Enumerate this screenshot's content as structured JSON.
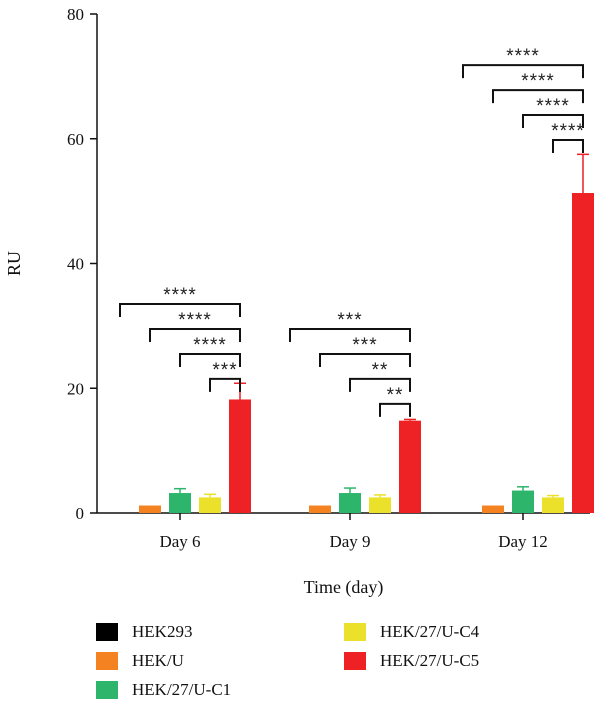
{
  "chart_data": {
    "type": "bar",
    "title": "",
    "xlabel": "Time (day)",
    "ylabel": "RU",
    "ylim": [
      0,
      80
    ],
    "yticks": [
      0,
      20,
      40,
      60,
      80
    ],
    "categories": [
      "Day 6",
      "Day 9",
      "Day 12"
    ],
    "series": [
      {
        "name": "HEK293",
        "color": "#000000",
        "values": [
          0,
          0,
          0
        ],
        "errors": [
          0,
          0,
          0
        ]
      },
      {
        "name": "HEK/U",
        "color": "#f58220",
        "values": [
          1.2,
          1.2,
          1.2
        ],
        "errors": [
          0,
          0,
          0
        ]
      },
      {
        "name": "HEK/27/U-C1",
        "color": "#2db56b",
        "values": [
          3.2,
          3.2,
          3.6
        ],
        "errors": [
          0.7,
          0.8,
          0.6
        ]
      },
      {
        "name": "HEK/27/U-C4",
        "color": "#ece12a",
        "values": [
          2.5,
          2.5,
          2.5
        ],
        "errors": [
          0.5,
          0.4,
          0.3
        ]
      },
      {
        "name": "HEK/27/U-C5",
        "color": "#ee2124",
        "values": [
          18.2,
          14.8,
          51.3
        ],
        "errors": [
          2.6,
          0.2,
          6.2
        ]
      }
    ],
    "significance": [
      {
        "group": 0,
        "from": 0,
        "to": 4,
        "label": "****"
      },
      {
        "group": 0,
        "from": 1,
        "to": 4,
        "label": "****"
      },
      {
        "group": 0,
        "from": 2,
        "to": 4,
        "label": "****"
      },
      {
        "group": 0,
        "from": 3,
        "to": 4,
        "label": "***"
      },
      {
        "group": 1,
        "from": 0,
        "to": 4,
        "label": "***"
      },
      {
        "group": 1,
        "from": 1,
        "to": 4,
        "label": "***"
      },
      {
        "group": 1,
        "from": 2,
        "to": 4,
        "label": "**"
      },
      {
        "group": 1,
        "from": 3,
        "to": 4,
        "label": "**"
      },
      {
        "group": 2,
        "from": 0,
        "to": 4,
        "label": "****"
      },
      {
        "group": 2,
        "from": 1,
        "to": 4,
        "label": "****"
      },
      {
        "group": 2,
        "from": 2,
        "to": 4,
        "label": "****"
      },
      {
        "group": 2,
        "from": 3,
        "to": 4,
        "label": "****"
      }
    ],
    "grid": false,
    "legend_position": "bottom"
  }
}
